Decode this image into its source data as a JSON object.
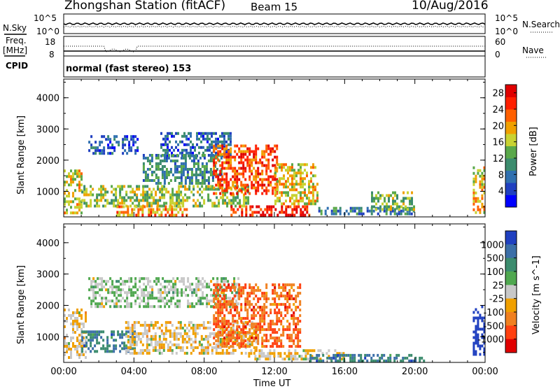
{
  "header": {
    "station_title": "Zhongshan Station (fitACF)",
    "beam": "Beam 15",
    "date": "10/Aug/2016"
  },
  "top_panels": {
    "nsky_label": "N.Sky",
    "nsky_ticks": [
      "10^5",
      "10^0"
    ],
    "nsearch_label": "N.Search",
    "nsearch_ticks": [
      "10^5",
      "10^0"
    ],
    "freq_label_1": "Freq.",
    "freq_label_2": "[MHz]",
    "freq_ticks": [
      "18",
      "8"
    ],
    "nave_label": "Nave",
    "nave_ticks": [
      "60",
      "0"
    ],
    "cpid_label": "CPID",
    "cpid_text": "normal (fast stereo) 153"
  },
  "colors": {
    "power_scale": [
      "#0000ff",
      "#2040c0",
      "#3070b0",
      "#3c8c6e",
      "#5aa84a",
      "#c8d232",
      "#f0a000",
      "#ff6000",
      "#ff2000",
      "#e00000"
    ],
    "velocity_scale": [
      "#2040c0",
      "#3c6fa8",
      "#3c8c6e",
      "#50a850",
      "#c8c8c8",
      "#f0a000",
      "#f08020",
      "#ff4010",
      "#e00000"
    ]
  },
  "chart_data": [
    {
      "type": "heatmap",
      "title": "",
      "xlabel": "Time UT",
      "ylabel": "Slant Range [km]",
      "x_ticks": [
        "00:00",
        "04:00",
        "08:00",
        "12:00",
        "16:00",
        "20:00",
        "00:00"
      ],
      "xlim_hours": [
        0,
        24
      ],
      "y_ticks": [
        1000,
        2000,
        3000,
        4000
      ],
      "ylim": [
        180,
        4600
      ],
      "colorbar_label": "Power [dB]",
      "colorbar_ticks": [
        4,
        8,
        12,
        16,
        20,
        24,
        28
      ],
      "colorbar_range": [
        0,
        30
      ],
      "blobs": [
        {
          "t0": 0.0,
          "t1": 1.0,
          "r0": 300,
          "r1": 1700,
          "v": 17
        },
        {
          "t0": 1.4,
          "t1": 4.2,
          "r0": 2200,
          "r1": 2800,
          "v": 6
        },
        {
          "t0": 1.0,
          "t1": 10.5,
          "r0": 500,
          "r1": 1200,
          "v": 15
        },
        {
          "t0": 3.0,
          "t1": 7.0,
          "r0": 250,
          "r1": 550,
          "v": 20
        },
        {
          "t0": 5.5,
          "t1": 9.5,
          "r0": 2100,
          "r1": 2900,
          "v": 7
        },
        {
          "t0": 4.5,
          "t1": 9.0,
          "r0": 1300,
          "r1": 2200,
          "v": 10
        },
        {
          "t0": 8.5,
          "t1": 12.2,
          "r0": 900,
          "r1": 2500,
          "v": 24
        },
        {
          "t0": 9.5,
          "t1": 14.0,
          "r0": 250,
          "r1": 550,
          "v": 27
        },
        {
          "t0": 12.0,
          "t1": 14.5,
          "r0": 600,
          "r1": 1900,
          "v": 18
        },
        {
          "t0": 14.5,
          "t1": 20.0,
          "r0": 250,
          "r1": 500,
          "v": 9
        },
        {
          "t0": 17.5,
          "t1": 20.0,
          "r0": 400,
          "r1": 1000,
          "v": 14
        },
        {
          "t0": 23.3,
          "t1": 24.0,
          "r0": 300,
          "r1": 1800,
          "v": 19
        }
      ]
    },
    {
      "type": "heatmap",
      "title": "",
      "xlabel": "Time UT",
      "ylabel": "Slant Range [km]",
      "x_ticks": [
        "00:00",
        "04:00",
        "08:00",
        "12:00",
        "16:00",
        "20:00",
        "00:00"
      ],
      "xlim_hours": [
        0,
        24
      ],
      "y_ticks": [
        1000,
        2000,
        3000,
        4000
      ],
      "ylim": [
        180,
        4600
      ],
      "colorbar_label": "Velocity [m s^-1]",
      "colorbar_ticks": [
        "1000",
        "500",
        "100",
        "25",
        "-25",
        "-100",
        "-500",
        "-1000"
      ],
      "blobs": [
        {
          "t0": 0.0,
          "t1": 1.2,
          "r0": 300,
          "r1": 1900,
          "v": "-100"
        },
        {
          "t0": 1.4,
          "t1": 10.0,
          "r0": 2000,
          "r1": 2900,
          "v": "0"
        },
        {
          "t0": 1.0,
          "t1": 4.0,
          "r0": 500,
          "r1": 1200,
          "v": "100"
        },
        {
          "t0": 3.5,
          "t1": 11.0,
          "r0": 500,
          "r1": 1500,
          "v": "-100"
        },
        {
          "t0": 8.5,
          "t1": 13.5,
          "r0": 700,
          "r1": 2700,
          "v": "-300"
        },
        {
          "t0": 10.5,
          "t1": 16.0,
          "r0": 250,
          "r1": 600,
          "v": "-100"
        },
        {
          "t0": 14.0,
          "t1": 20.5,
          "r0": 250,
          "r1": 450,
          "v": "100"
        },
        {
          "t0": 23.3,
          "t1": 24.0,
          "r0": 400,
          "r1": 2000,
          "v": "500"
        }
      ]
    }
  ]
}
